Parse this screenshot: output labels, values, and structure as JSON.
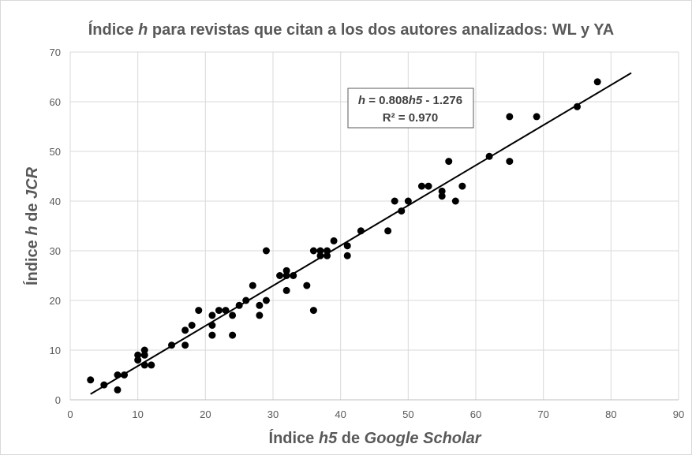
{
  "chart_data": {
    "type": "scatter",
    "title": [
      "Índice ",
      "h",
      " para revistas que citan a los dos autores analizados: WL y YA"
    ],
    "x_label": [
      "Índice ",
      "h5",
      " de ",
      "Google Scholar"
    ],
    "y_label": [
      "Índice ",
      "h",
      " de ",
      "JCR"
    ],
    "annotation": {
      "line1": [
        "h",
        " = 0.808",
        "h5",
        " - 1.276"
      ],
      "line2": "R² = 0.970"
    },
    "color": "#000000",
    "x": [
      3,
      5,
      7,
      7,
      8,
      10,
      10,
      11,
      11,
      11,
      12,
      15,
      17,
      17,
      18,
      19,
      21,
      21,
      21,
      22,
      23,
      24,
      24,
      25,
      26,
      27,
      28,
      28,
      29,
      29,
      31,
      32,
      32,
      32,
      33,
      35,
      36,
      36,
      37,
      37,
      38,
      38,
      39,
      41,
      41,
      43,
      47,
      48,
      49,
      50,
      52,
      53,
      55,
      55,
      56,
      57,
      58,
      62,
      65,
      65,
      69,
      75,
      78
    ],
    "values": [
      4,
      3,
      5,
      2,
      5,
      9,
      8,
      10,
      9,
      7,
      7,
      11,
      14,
      11,
      15,
      18,
      17,
      15,
      13,
      18,
      18,
      17,
      13,
      19,
      20,
      23,
      19,
      17,
      30,
      20,
      25,
      26,
      25,
      22,
      25,
      23,
      30,
      18,
      30,
      29,
      30,
      29,
      32,
      31,
      29,
      34,
      34,
      40,
      38,
      40,
      43,
      43,
      42,
      41,
      48,
      40,
      43,
      49,
      57,
      48,
      57,
      59,
      64
    ],
    "trendline": {
      "slope": 0.808,
      "intercept": -1.276,
      "xlim": [
        3,
        83
      ]
    },
    "xlim": [
      0,
      90
    ],
    "xticks": [
      0,
      10,
      20,
      30,
      40,
      50,
      60,
      70,
      80,
      90
    ],
    "ylim": [
      0,
      70
    ],
    "yticks": [
      0,
      10,
      20,
      30,
      40,
      50,
      60,
      70
    ],
    "grid": true
  }
}
